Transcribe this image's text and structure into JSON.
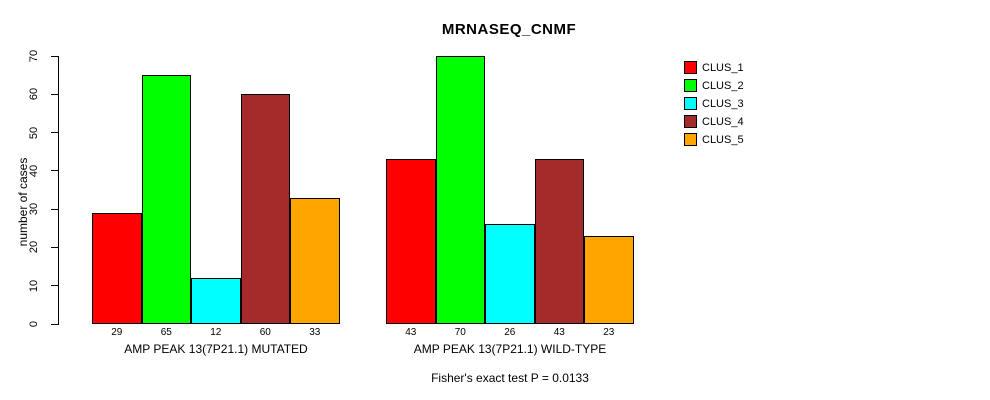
{
  "chart_data": {
    "type": "bar",
    "title": "MRNASEQ_CNMF",
    "ylabel": "number of cases",
    "ylim": [
      0,
      70
    ],
    "yticks": [
      0,
      10,
      20,
      30,
      40,
      50,
      60,
      70
    ],
    "grid": false,
    "legend_position": "right",
    "series": [
      {
        "name": "CLUS_1",
        "color": "#FF0000"
      },
      {
        "name": "CLUS_2",
        "color": "#00FF00"
      },
      {
        "name": "CLUS_3",
        "color": "#00FFFF"
      },
      {
        "name": "CLUS_4",
        "color": "#A52A2A"
      },
      {
        "name": "CLUS_5",
        "color": "#FFA500"
      }
    ],
    "groups": [
      {
        "label": "AMP PEAK 13(7P21.1) MUTATED",
        "values": [
          29,
          65,
          12,
          60,
          33
        ]
      },
      {
        "label": "AMP PEAK 13(7P21.1) WILD-TYPE",
        "values": [
          43,
          70,
          26,
          43,
          23
        ]
      }
    ],
    "annotation": "Fisher's exact test P = 0.0133"
  }
}
